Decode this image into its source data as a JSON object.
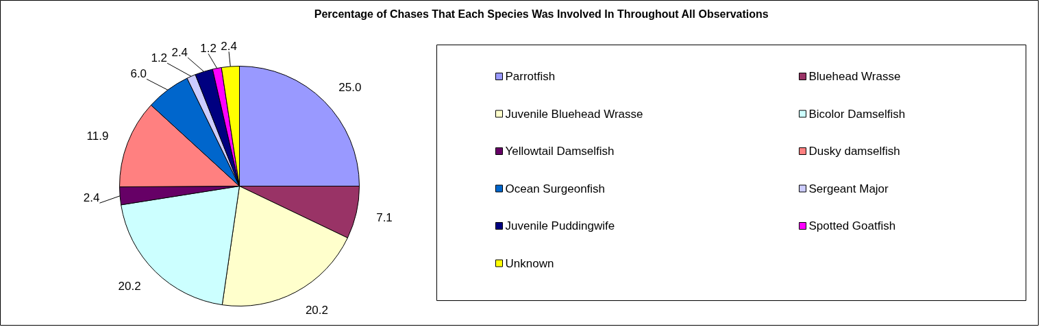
{
  "chart_data": {
    "type": "pie",
    "title": "Percentage of Chases That Each Species Was Involved In Throughout All Observations",
    "categories": [
      "Parrotfish",
      "Bluehead Wrasse",
      "Juvenile Bluehead Wrasse",
      "Bicolor Damselfish",
      "Yellowtail Damselfish",
      "Dusky damselfish",
      "Ocean Surgeonfish",
      "Sergeant Major",
      "Juvenile Puddingwife",
      "Spotted Goatfish",
      "Unknown"
    ],
    "values": [
      25.0,
      7.1,
      20.2,
      20.2,
      2.4,
      11.9,
      6.0,
      1.2,
      2.4,
      1.2,
      2.4
    ],
    "colors": [
      "#9999ff",
      "#993366",
      "#ffffcc",
      "#ccffff",
      "#660066",
      "#ff8080",
      "#0066cc",
      "#ccccff",
      "#000080",
      "#ff00ff",
      "#ffff00"
    ],
    "value_labels": [
      "25.0",
      "7.1",
      "20.2",
      "20.2",
      "2.4",
      "11.9",
      "6.0",
      "1.2",
      "2.4",
      "1.2",
      "2.4"
    ],
    "legend": "right"
  }
}
